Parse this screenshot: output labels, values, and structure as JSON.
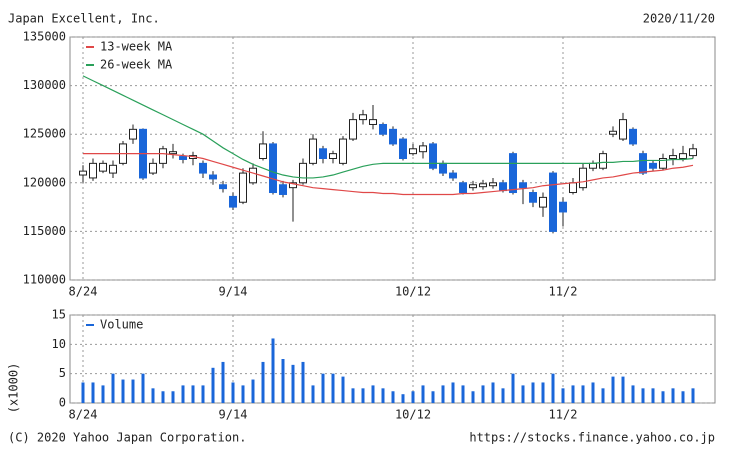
{
  "chart_data": [
    {
      "type": "candlestick",
      "title": "Japan Excellent, Inc.",
      "date": "2020/11/20",
      "categories": [
        "8/24",
        null,
        null,
        null,
        null,
        null,
        null,
        null,
        null,
        null,
        null,
        null,
        null,
        null,
        null,
        "9/14",
        null,
        null,
        null,
        null,
        null,
        null,
        null,
        null,
        null,
        null,
        null,
        null,
        null,
        null,
        null,
        null,
        null,
        "10/12",
        null,
        null,
        null,
        null,
        null,
        null,
        null,
        null,
        null,
        null,
        null,
        null,
        null,
        null,
        "11/2",
        null,
        null,
        null,
        null,
        null,
        null,
        null,
        null,
        null,
        null,
        null,
        null,
        null
      ],
      "open": [
        120800,
        120500,
        121200,
        121000,
        122000,
        124500,
        125500,
        121000,
        122000,
        123000,
        122700,
        122500,
        122000,
        120800,
        119800,
        118600,
        118000,
        120000,
        122500,
        124000,
        119800,
        119500,
        120000,
        122000,
        123500,
        122500,
        122000,
        124500,
        126500,
        126000,
        126000,
        125500,
        124500,
        123000,
        123200,
        124000,
        122000,
        121000,
        120000,
        119500,
        119600,
        119700,
        120000,
        123000,
        120000,
        119000,
        117500,
        121000,
        118000,
        119000,
        119500,
        121500,
        121500,
        125000,
        124500,
        125500,
        123000,
        122000,
        121500,
        122500,
        122500,
        122800
      ],
      "high": [
        121800,
        122500,
        122300,
        122300,
        124300,
        126000,
        125600,
        122500,
        123800,
        124000,
        123000,
        123200,
        122300,
        121200,
        120200,
        119000,
        121500,
        122000,
        125300,
        124200,
        120200,
        120300,
        122500,
        125000,
        123800,
        123300,
        124800,
        127200,
        127500,
        128000,
        126200,
        125800,
        124700,
        124000,
        124200,
        124200,
        122300,
        121300,
        120200,
        120200,
        120300,
        120500,
        120300,
        123200,
        120300,
        119300,
        119000,
        121200,
        118500,
        120500,
        122000,
        122300,
        123300,
        125800,
        127200,
        125700,
        123300,
        122300,
        123000,
        123500,
        123800,
        124000
      ],
      "low": [
        120000,
        120200,
        121000,
        120500,
        121800,
        124000,
        120300,
        120800,
        121500,
        122500,
        122000,
        121800,
        120500,
        119800,
        119000,
        117200,
        117800,
        119800,
        122300,
        118800,
        118500,
        116000,
        119800,
        121800,
        122000,
        122000,
        121800,
        124300,
        126000,
        125500,
        124800,
        123800,
        122300,
        122800,
        122500,
        121300,
        120700,
        120200,
        118800,
        119200,
        119300,
        119400,
        119000,
        118800,
        117800,
        117500,
        116500,
        114800,
        115500,
        118800,
        119200,
        121200,
        121300,
        124700,
        124300,
        123800,
        120800,
        121200,
        121300,
        121800,
        122200,
        122500
      ],
      "close": [
        121200,
        122000,
        122000,
        121800,
        124000,
        125500,
        120500,
        122000,
        123500,
        123200,
        122400,
        122800,
        121000,
        120400,
        119400,
        117500,
        121000,
        121500,
        124000,
        119000,
        118800,
        120000,
        122000,
        124500,
        122500,
        123000,
        124500,
        126500,
        127000,
        126500,
        125000,
        124000,
        122500,
        123500,
        123800,
        121500,
        121000,
        120500,
        119000,
        119800,
        119900,
        120000,
        119200,
        119000,
        119500,
        118000,
        118500,
        115000,
        117000,
        120000,
        121500,
        122000,
        123000,
        125300,
        126500,
        124000,
        121000,
        121500,
        122500,
        122800,
        123000,
        123500
      ],
      "up_color": "#ffffff",
      "down_color": "#1a66d9",
      "series": [
        {
          "name": "13-week MA",
          "color": "#e04848",
          "values": [
            123000,
            123000,
            123000,
            123000,
            123000,
            123000,
            123000,
            123000,
            123000,
            122900,
            122800,
            122700,
            122500,
            122200,
            121900,
            121600,
            121300,
            121000,
            120700,
            120400,
            120100,
            119900,
            119700,
            119500,
            119400,
            119300,
            119200,
            119100,
            119000,
            119000,
            118900,
            118900,
            118800,
            118800,
            118800,
            118800,
            118800,
            118800,
            118900,
            118900,
            119000,
            119100,
            119200,
            119300,
            119400,
            119500,
            119700,
            119800,
            119900,
            120000,
            120100,
            120300,
            120500,
            120600,
            120800,
            121000,
            121100,
            121200,
            121300,
            121500,
            121600,
            121800
          ]
        },
        {
          "name": "26-week MA",
          "color": "#2aa05a",
          "values": [
            131000,
            130500,
            130000,
            129500,
            129000,
            128500,
            128000,
            127500,
            127000,
            126500,
            126000,
            125500,
            125000,
            124300,
            123600,
            123000,
            122400,
            121900,
            121500,
            121100,
            120800,
            120600,
            120500,
            120500,
            120600,
            120800,
            121100,
            121400,
            121700,
            121900,
            122000,
            122000,
            122000,
            122000,
            122000,
            122000,
            122000,
            122000,
            122000,
            122000,
            122000,
            122000,
            122000,
            122000,
            122000,
            122000,
            122000,
            122000,
            122000,
            122000,
            122000,
            122000,
            122100,
            122100,
            122200,
            122200,
            122300,
            122300,
            122300,
            122400,
            122400,
            122500
          ]
        }
      ],
      "ylim": [
        110000,
        135000
      ],
      "yticks": [
        110000,
        115000,
        120000,
        125000,
        130000,
        135000
      ],
      "grid": true,
      "legend": "top-left"
    },
    {
      "type": "bar",
      "categories": [
        "8/24",
        null,
        null,
        null,
        null,
        null,
        null,
        null,
        null,
        null,
        null,
        null,
        null,
        null,
        null,
        "9/14",
        null,
        null,
        null,
        null,
        null,
        null,
        null,
        null,
        null,
        null,
        null,
        null,
        null,
        null,
        null,
        null,
        null,
        "10/12",
        null,
        null,
        null,
        null,
        null,
        null,
        null,
        null,
        null,
        null,
        null,
        null,
        null,
        null,
        "11/2",
        null,
        null,
        null,
        null,
        null,
        null,
        null,
        null,
        null,
        null,
        null,
        null,
        null
      ],
      "series": [
        {
          "name": "Volume",
          "color": "#1a66d9",
          "values": [
            3.5,
            3.5,
            3,
            5,
            4,
            4,
            5,
            2.5,
            2,
            2,
            3,
            3,
            3,
            6,
            7,
            3.5,
            3,
            4,
            7,
            11,
            7.5,
            6.5,
            7,
            3,
            5,
            5,
            4.5,
            2.5,
            2.5,
            3,
            2.5,
            2,
            1.5,
            2,
            3,
            2,
            3,
            3.5,
            3,
            2,
            3,
            3.5,
            2.5,
            5,
            3,
            3.5,
            3.5,
            5,
            2.5,
            3,
            3,
            3.5,
            2.5,
            4.5,
            4.5,
            3,
            2.5,
            2.5,
            2,
            2.5,
            2,
            2.5
          ]
        }
      ],
      "ylabel": "(x1000)",
      "ylim": [
        0,
        15
      ],
      "yticks": [
        0,
        5,
        10,
        15
      ],
      "grid": true,
      "legend": "top-left",
      "credit": "(C) 2020 Yahoo Japan Corporation.",
      "url": "https://stocks.finance.yahoo.co.jp"
    }
  ]
}
